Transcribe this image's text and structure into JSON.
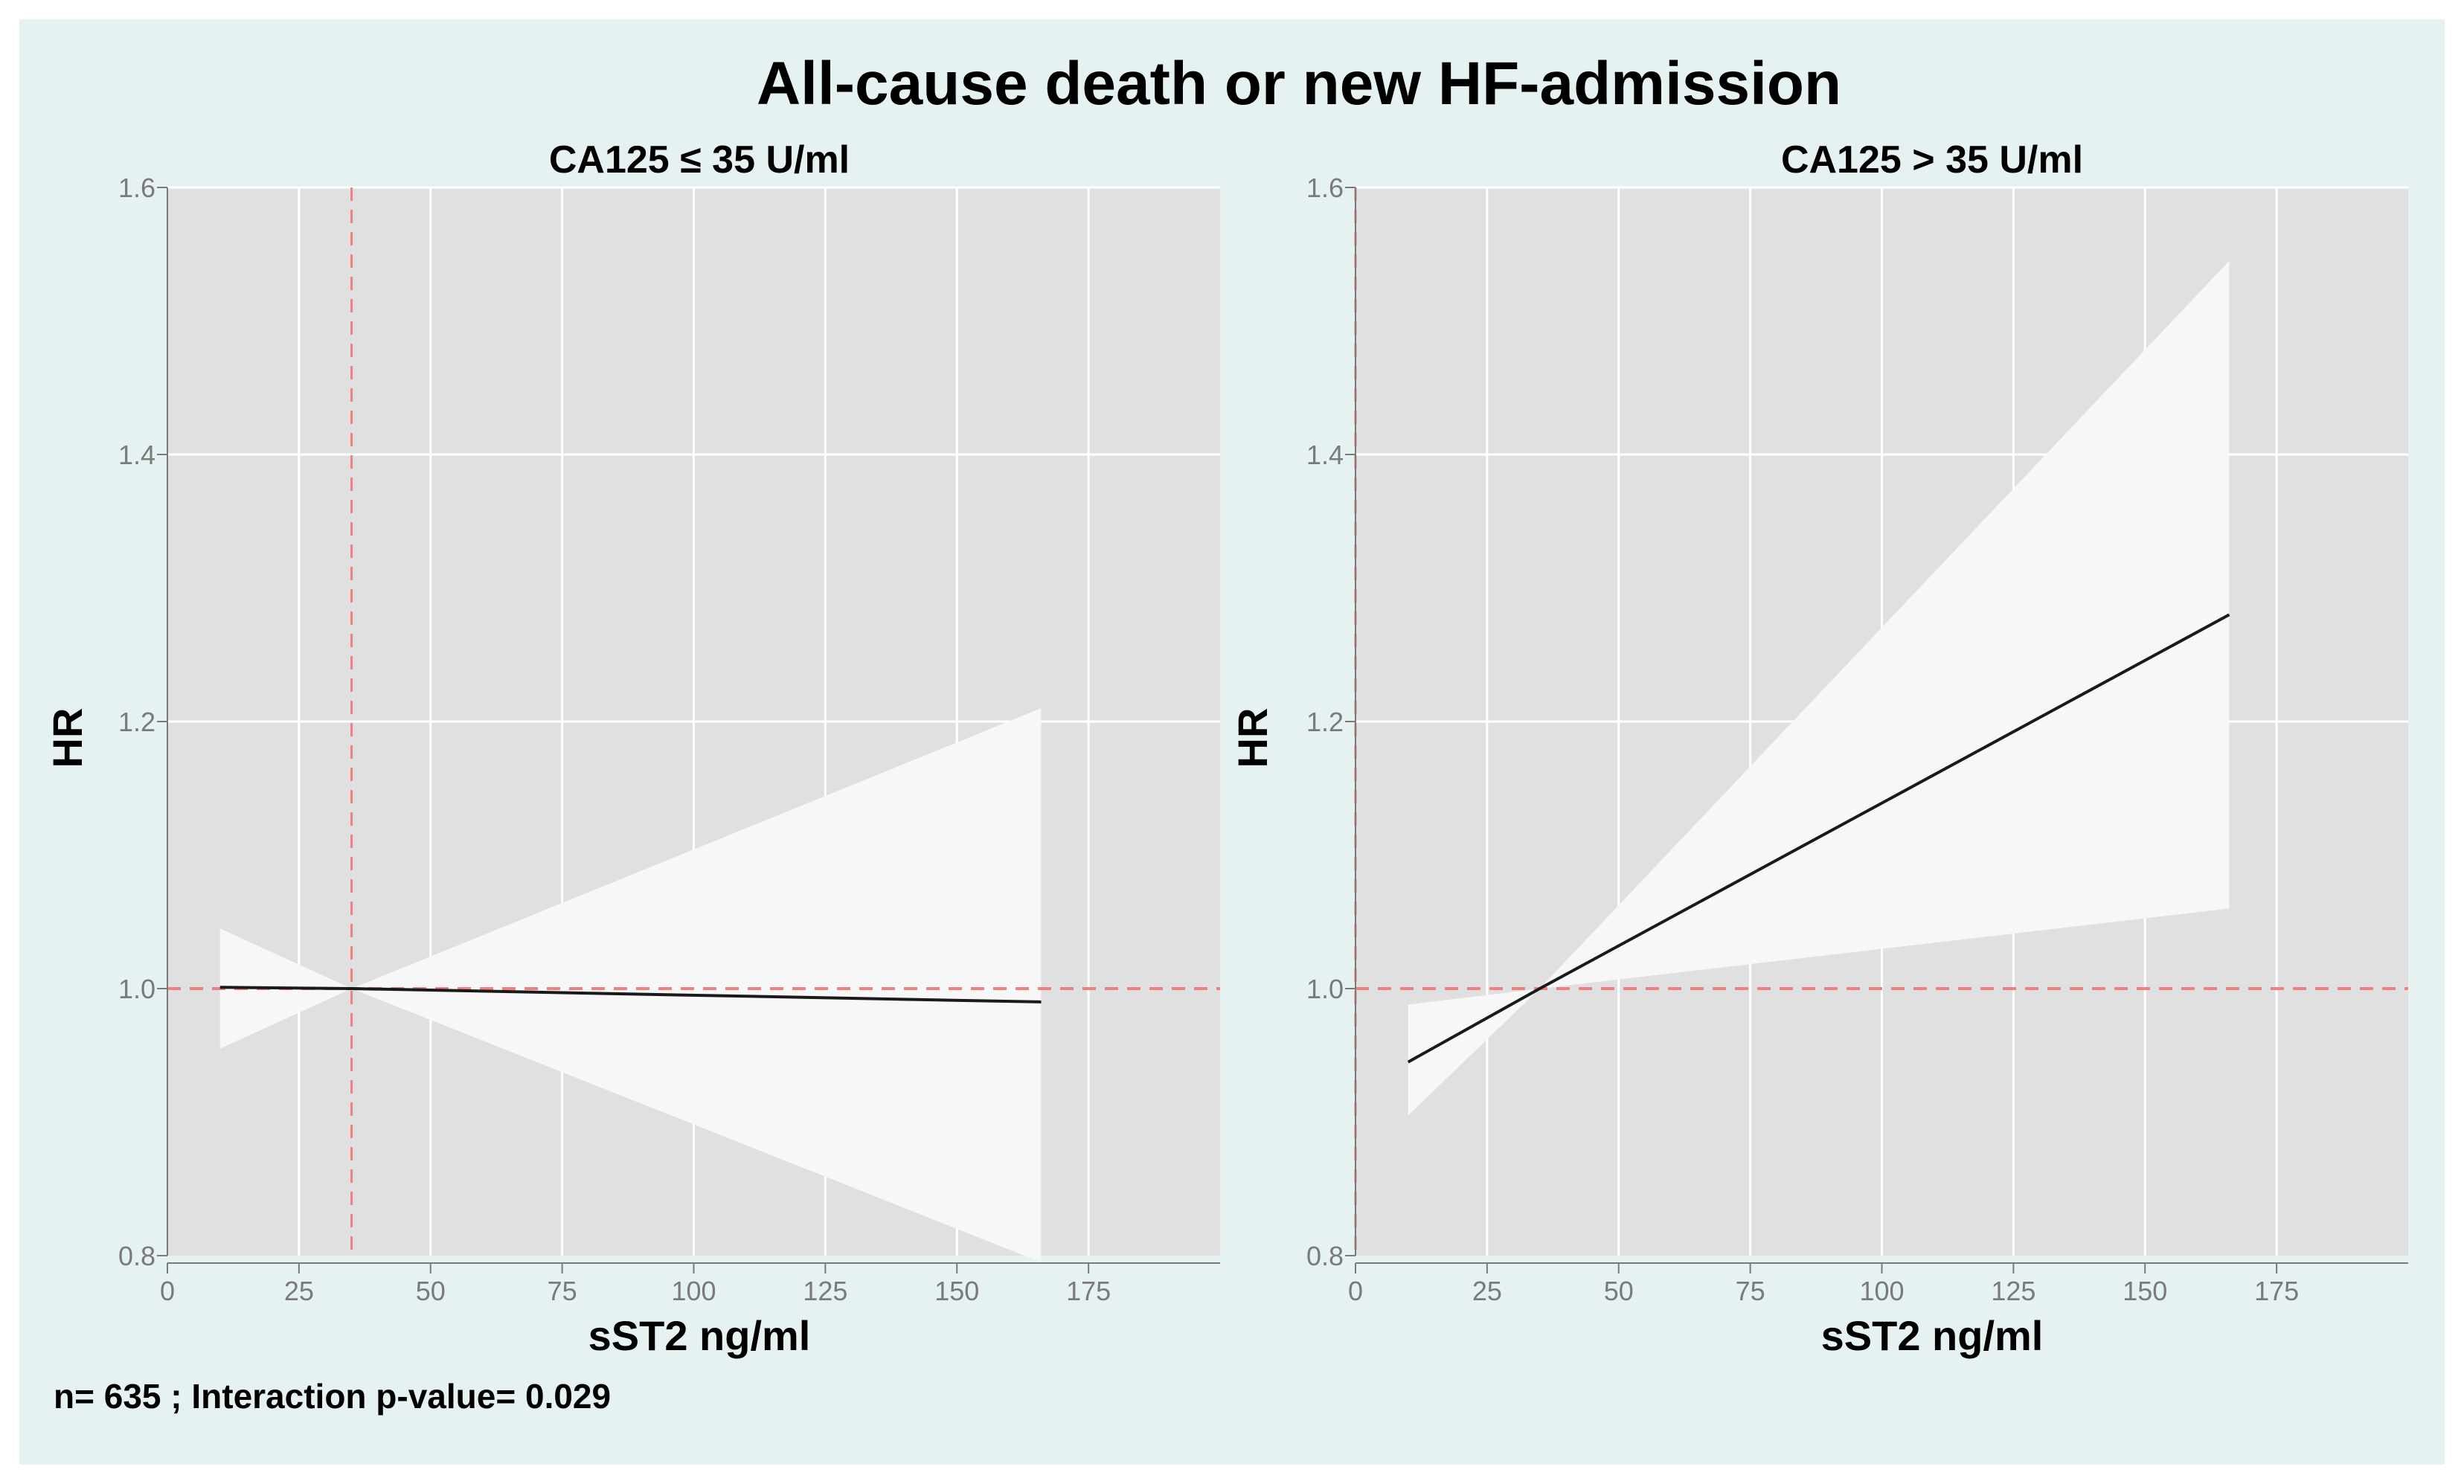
{
  "figure": {
    "title": "All-cause death or new HF-admission",
    "footnote": "n= 635 ; Interaction p-value= 0.029",
    "colors": {
      "background": "#e6f1f2",
      "panel": "#e0e0e0",
      "grid": "#ffffff",
      "band": "#f7f7f7",
      "line": "#1a1a1a",
      "reference": "#f08080",
      "tick": "#7a7a7a"
    }
  },
  "chart_data": [
    {
      "type": "line",
      "title": "CA125 ≤ 35 U/ml",
      "xlabel": "sST2 ng/ml",
      "ylabel": "HR",
      "xlim": [
        0,
        200
      ],
      "ylim": [
        0.8,
        1.6
      ],
      "xticks": [
        0,
        25,
        50,
        75,
        100,
        125,
        150,
        175
      ],
      "xtick_labels": [
        "0",
        "25",
        "50",
        "75",
        "100",
        "125",
        "150",
        "175"
      ],
      "yticks": [
        0.8,
        1.0,
        1.2,
        1.4,
        1.6
      ],
      "ytick_labels": [
        "0.8",
        "1.0",
        "1.2",
        "1.4",
        "1.6"
      ],
      "x_gridlines": [
        25,
        50,
        75,
        100,
        125,
        150,
        175
      ],
      "y_gridlines": [
        1.2,
        1.4,
        1.6
      ],
      "reference_lines": {
        "hline": 1.0,
        "vline": 35
      },
      "series": [
        {
          "name": "HR",
          "x": [
            10,
            35,
            166
          ],
          "y": [
            1.001,
            1.0,
            0.99
          ]
        }
      ],
      "ci_band": {
        "x": [
          10,
          35,
          166
        ],
        "lower": [
          0.955,
          1.0,
          0.795
        ],
        "upper": [
          1.045,
          1.0,
          1.21
        ]
      }
    },
    {
      "type": "line",
      "title": "CA125 > 35 U/ml",
      "xlabel": "sST2 ng/ml",
      "ylabel": "HR",
      "xlim": [
        0,
        200
      ],
      "ylim": [
        0.8,
        1.6
      ],
      "xticks": [
        0,
        25,
        50,
        75,
        100,
        125,
        150,
        175
      ],
      "xtick_labels": [
        "0",
        "25",
        "50",
        "75",
        "100",
        "125",
        "150",
        "175"
      ],
      "yticks": [
        0.8,
        1.0,
        1.2,
        1.4,
        1.6
      ],
      "ytick_labels": [
        "0.8",
        "1.0",
        "1.2",
        "1.4",
        "1.6"
      ],
      "x_gridlines": [
        25,
        50,
        75,
        100,
        125,
        150,
        175
      ],
      "y_gridlines": [
        1.2,
        1.4,
        1.6
      ],
      "reference_lines": {
        "hline": 1.0,
        "vline": 0
      },
      "series": [
        {
          "name": "HR",
          "x": [
            10,
            35,
            166
          ],
          "y": [
            0.945,
            1.0,
            1.28
          ]
        }
      ],
      "ci_band": {
        "x": [
          10,
          35,
          166
        ],
        "lower": [
          0.905,
          1.0,
          1.06
        ],
        "upper": [
          0.988,
          1.0,
          1.545
        ]
      }
    }
  ]
}
